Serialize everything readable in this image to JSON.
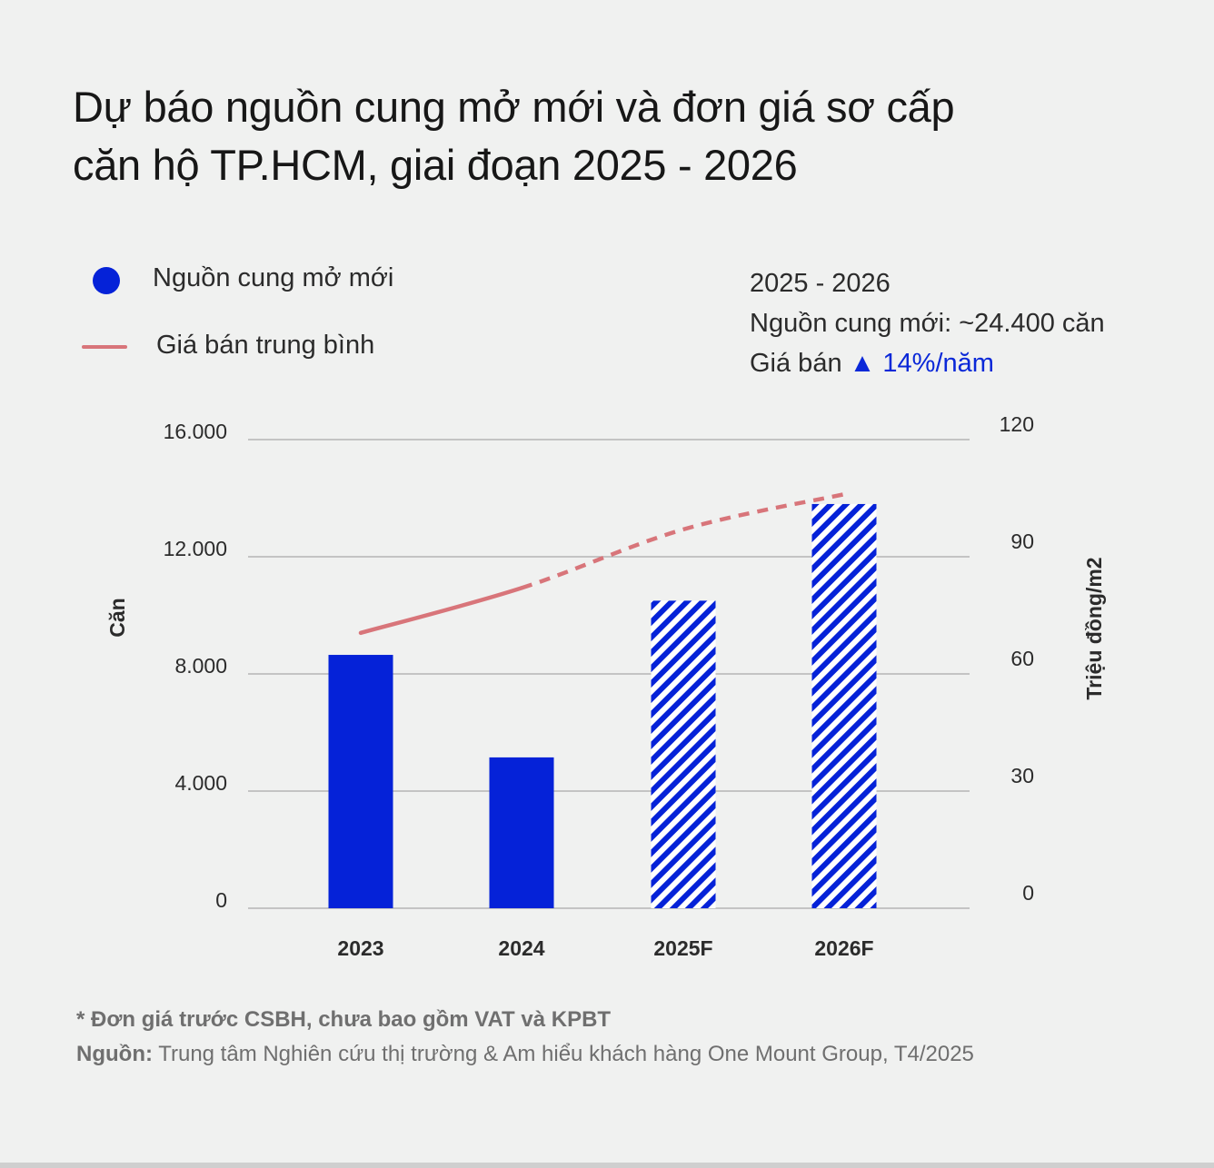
{
  "title": {
    "line1": "Dự báo nguồn cung mở mới và đơn giá sơ cấp",
    "line2": "căn hộ TP.HCM, giai đoạn 2025 - 2026"
  },
  "legend": {
    "supply_label": "Nguồn cung mở mới",
    "price_label": "Giá bán trung bình"
  },
  "summary": {
    "period": "2025 - 2026",
    "supply_text": "Nguồn cung mới: ~24.400 căn",
    "price_prefix": "Giá bán",
    "price_change": "▲ 14%/năm"
  },
  "colors": {
    "bar": "#0522d8",
    "line": "#d8757a",
    "background": "#f0f1f0"
  },
  "chart_data": {
    "type": "bar",
    "categories": [
      "2023",
      "2024",
      "2025F",
      "2026F"
    ],
    "series": [
      {
        "name": "Nguồn cung mở mới",
        "axis": "left",
        "values": [
          8650,
          5150,
          10500,
          13800
        ],
        "forecast": [
          false,
          false,
          true,
          true
        ]
      },
      {
        "name": "Giá bán trung bình",
        "type": "line",
        "axis": "right",
        "x": [
          "2023",
          "2024",
          "2025F",
          "2026F"
        ],
        "values": [
          70.5,
          82,
          97,
          106
        ],
        "forecast_from": "2024"
      }
    ],
    "ylabel": "Căn",
    "y2label": "Triệu đồng/m2",
    "ylim": [
      0,
      16000
    ],
    "y2lim": [
      0,
      120
    ],
    "yticks": [
      "16.000",
      "12.000",
      "8.000",
      "4.000",
      "0"
    ],
    "y2ticks": [
      "120",
      "90",
      "60",
      "30",
      "0"
    ],
    "grid": true
  },
  "footnote": {
    "note": "* Đơn giá trước CSBH, chưa bao gồm VAT và KPBT",
    "source_label": "Nguồn:",
    "source_text": " Trung tâm Nghiên cứu thị trường & Am hiểu khách hàng One Mount Group, T4/2025"
  }
}
